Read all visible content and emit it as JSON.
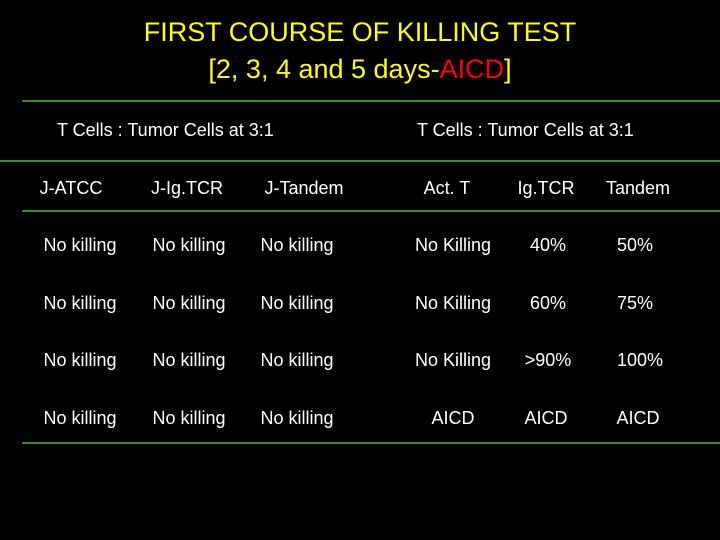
{
  "title": {
    "line1": "FIRST COURSE OF KILLING TEST",
    "line2_prefix": "[2, 3, 4 and 5 days-",
    "line2_accent": "AICD",
    "line2_suffix": "]"
  },
  "groups": [
    "T Cells : Tumor Cells at 3:1",
    "T Cells : Tumor Cells at 3:1"
  ],
  "columns": [
    "J-ATCC",
    "J-Ig.TCR",
    "J-Tandem",
    "Act. T",
    "Ig.TCR",
    "Tandem"
  ],
  "rows": [
    [
      "No killing",
      "No killing",
      "No killing",
      "No Killing",
      "40%",
      "50%"
    ],
    [
      "No killing",
      "No killing",
      "No killing",
      "No Killing",
      "60%",
      "75%"
    ],
    [
      "No killing",
      "No killing",
      "No killing",
      "No Killing",
      ">90%",
      "100%"
    ],
    [
      "No killing",
      "No killing",
      "No killing",
      "AICD",
      "AICD",
      "AICD"
    ]
  ],
  "colors": {
    "background": "#000000",
    "title": "#ffff00",
    "accent": "#ff0000",
    "text": "#ffffff",
    "rule": "#3a8a3a"
  }
}
